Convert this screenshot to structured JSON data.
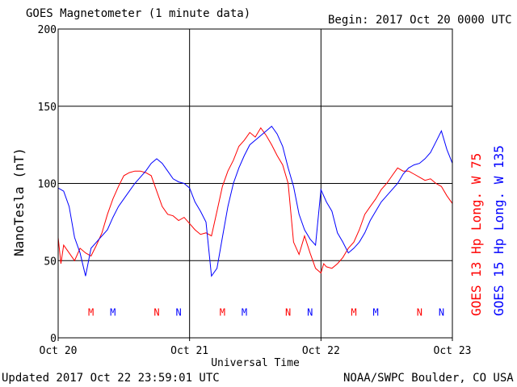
{
  "header": {
    "title": "GOES Magnetometer (1 minute data)",
    "begin": "Begin:  2017 Oct 20 0000 UTC"
  },
  "footer": {
    "updated": "Updated 2017 Oct 22 23:59:01 UTC",
    "source": "NOAA/SWPC Boulder, CO USA"
  },
  "chart_data": {
    "type": "line",
    "title": "GOES Magnetometer (1 minute data)",
    "xlabel": "Universal Time",
    "ylabel": "NanoTesla (nT)",
    "ylim": [
      0,
      200
    ],
    "yticks": [
      0,
      50,
      100,
      150,
      200
    ],
    "xlim": [
      0,
      72
    ],
    "x_unit": "hours since 2017 Oct 20 0000 UTC",
    "xtick_hours": [
      0,
      24,
      48,
      72
    ],
    "xtick_labels": [
      "Oct 20",
      "Oct 21",
      "Oct 22",
      "Oct 23"
    ],
    "grid": true,
    "series": [
      {
        "name": "GOES 13 Hp  Long. W 75",
        "color": "#ff0000",
        "x": [
          0,
          0.5,
          1,
          2,
          3,
          4,
          5,
          6,
          7,
          8,
          9,
          10,
          11,
          12,
          13,
          14,
          15,
          16,
          17,
          18,
          19,
          20,
          21,
          22,
          23,
          24,
          25,
          26,
          27,
          28,
          29,
          30,
          31,
          32,
          33,
          34,
          35,
          36,
          37,
          38,
          39,
          40,
          41,
          42,
          43,
          44,
          45,
          46,
          47,
          48,
          48.5,
          49,
          50,
          51,
          52,
          53,
          54,
          55,
          56,
          57,
          58,
          59,
          60,
          61,
          62,
          63,
          64,
          65,
          66,
          67,
          68,
          69,
          70,
          71,
          72
        ],
        "y": [
          65,
          48,
          60,
          55,
          50,
          58,
          55,
          53,
          60,
          68,
          80,
          90,
          98,
          105,
          107,
          108,
          108,
          107,
          105,
          95,
          85,
          80,
          79,
          76,
          78,
          74,
          70,
          67,
          68,
          66,
          82,
          98,
          108,
          115,
          124,
          128,
          133,
          130,
          136,
          131,
          125,
          118,
          112,
          100,
          62,
          54,
          66,
          55,
          45,
          42,
          48,
          46,
          45,
          48,
          52,
          58,
          62,
          70,
          80,
          85,
          90,
          96,
          100,
          105,
          110,
          108,
          108,
          106,
          104,
          102,
          103,
          100,
          98,
          92,
          87
        ]
      },
      {
        "name": "GOES 15 Hp  Long. W 135",
        "color": "#0000ff",
        "x": [
          0,
          1,
          2,
          3,
          4,
          5,
          6,
          7,
          8,
          9,
          10,
          11,
          12,
          13,
          14,
          15,
          16,
          17,
          18,
          19,
          20,
          21,
          22,
          23,
          24,
          25,
          26,
          27,
          28,
          29,
          30,
          31,
          32,
          33,
          34,
          35,
          36,
          37,
          38,
          39,
          40,
          41,
          42,
          43,
          44,
          45,
          46,
          47,
          48,
          49,
          50,
          51,
          52,
          53,
          54,
          55,
          56,
          57,
          58,
          59,
          60,
          61,
          62,
          63,
          64,
          65,
          66,
          67,
          68,
          69,
          70,
          71,
          72
        ],
        "y": [
          97,
          95,
          85,
          65,
          55,
          40,
          58,
          62,
          66,
          70,
          78,
          85,
          90,
          95,
          100,
          104,
          108,
          113,
          116,
          113,
          108,
          103,
          101,
          100,
          97,
          88,
          82,
          75,
          40,
          45,
          65,
          85,
          100,
          110,
          118,
          125,
          128,
          131,
          134,
          137,
          132,
          124,
          110,
          98,
          80,
          70,
          64,
          60,
          96,
          88,
          82,
          68,
          62,
          55,
          58,
          62,
          68,
          76,
          82,
          88,
          92,
          96,
          100,
          106,
          110,
          112,
          113,
          116,
          120,
          127,
          134,
          122,
          113
        ]
      }
    ],
    "annotations": [
      {
        "text": "M",
        "hour": 6,
        "y": 17,
        "color": "#ff0000"
      },
      {
        "text": "M",
        "hour": 10,
        "y": 17,
        "color": "#0000ff"
      },
      {
        "text": "N",
        "hour": 18,
        "y": 17,
        "color": "#ff0000"
      },
      {
        "text": "N",
        "hour": 22,
        "y": 17,
        "color": "#0000ff"
      },
      {
        "text": "M",
        "hour": 30,
        "y": 17,
        "color": "#ff0000"
      },
      {
        "text": "M",
        "hour": 34,
        "y": 17,
        "color": "#0000ff"
      },
      {
        "text": "N",
        "hour": 42,
        "y": 17,
        "color": "#ff0000"
      },
      {
        "text": "N",
        "hour": 46,
        "y": 17,
        "color": "#0000ff"
      },
      {
        "text": "M",
        "hour": 54,
        "y": 17,
        "color": "#ff0000"
      },
      {
        "text": "M",
        "hour": 58,
        "y": 17,
        "color": "#0000ff"
      },
      {
        "text": "N",
        "hour": 66,
        "y": 17,
        "color": "#ff0000"
      },
      {
        "text": "N",
        "hour": 70,
        "y": 17,
        "color": "#0000ff"
      }
    ]
  }
}
